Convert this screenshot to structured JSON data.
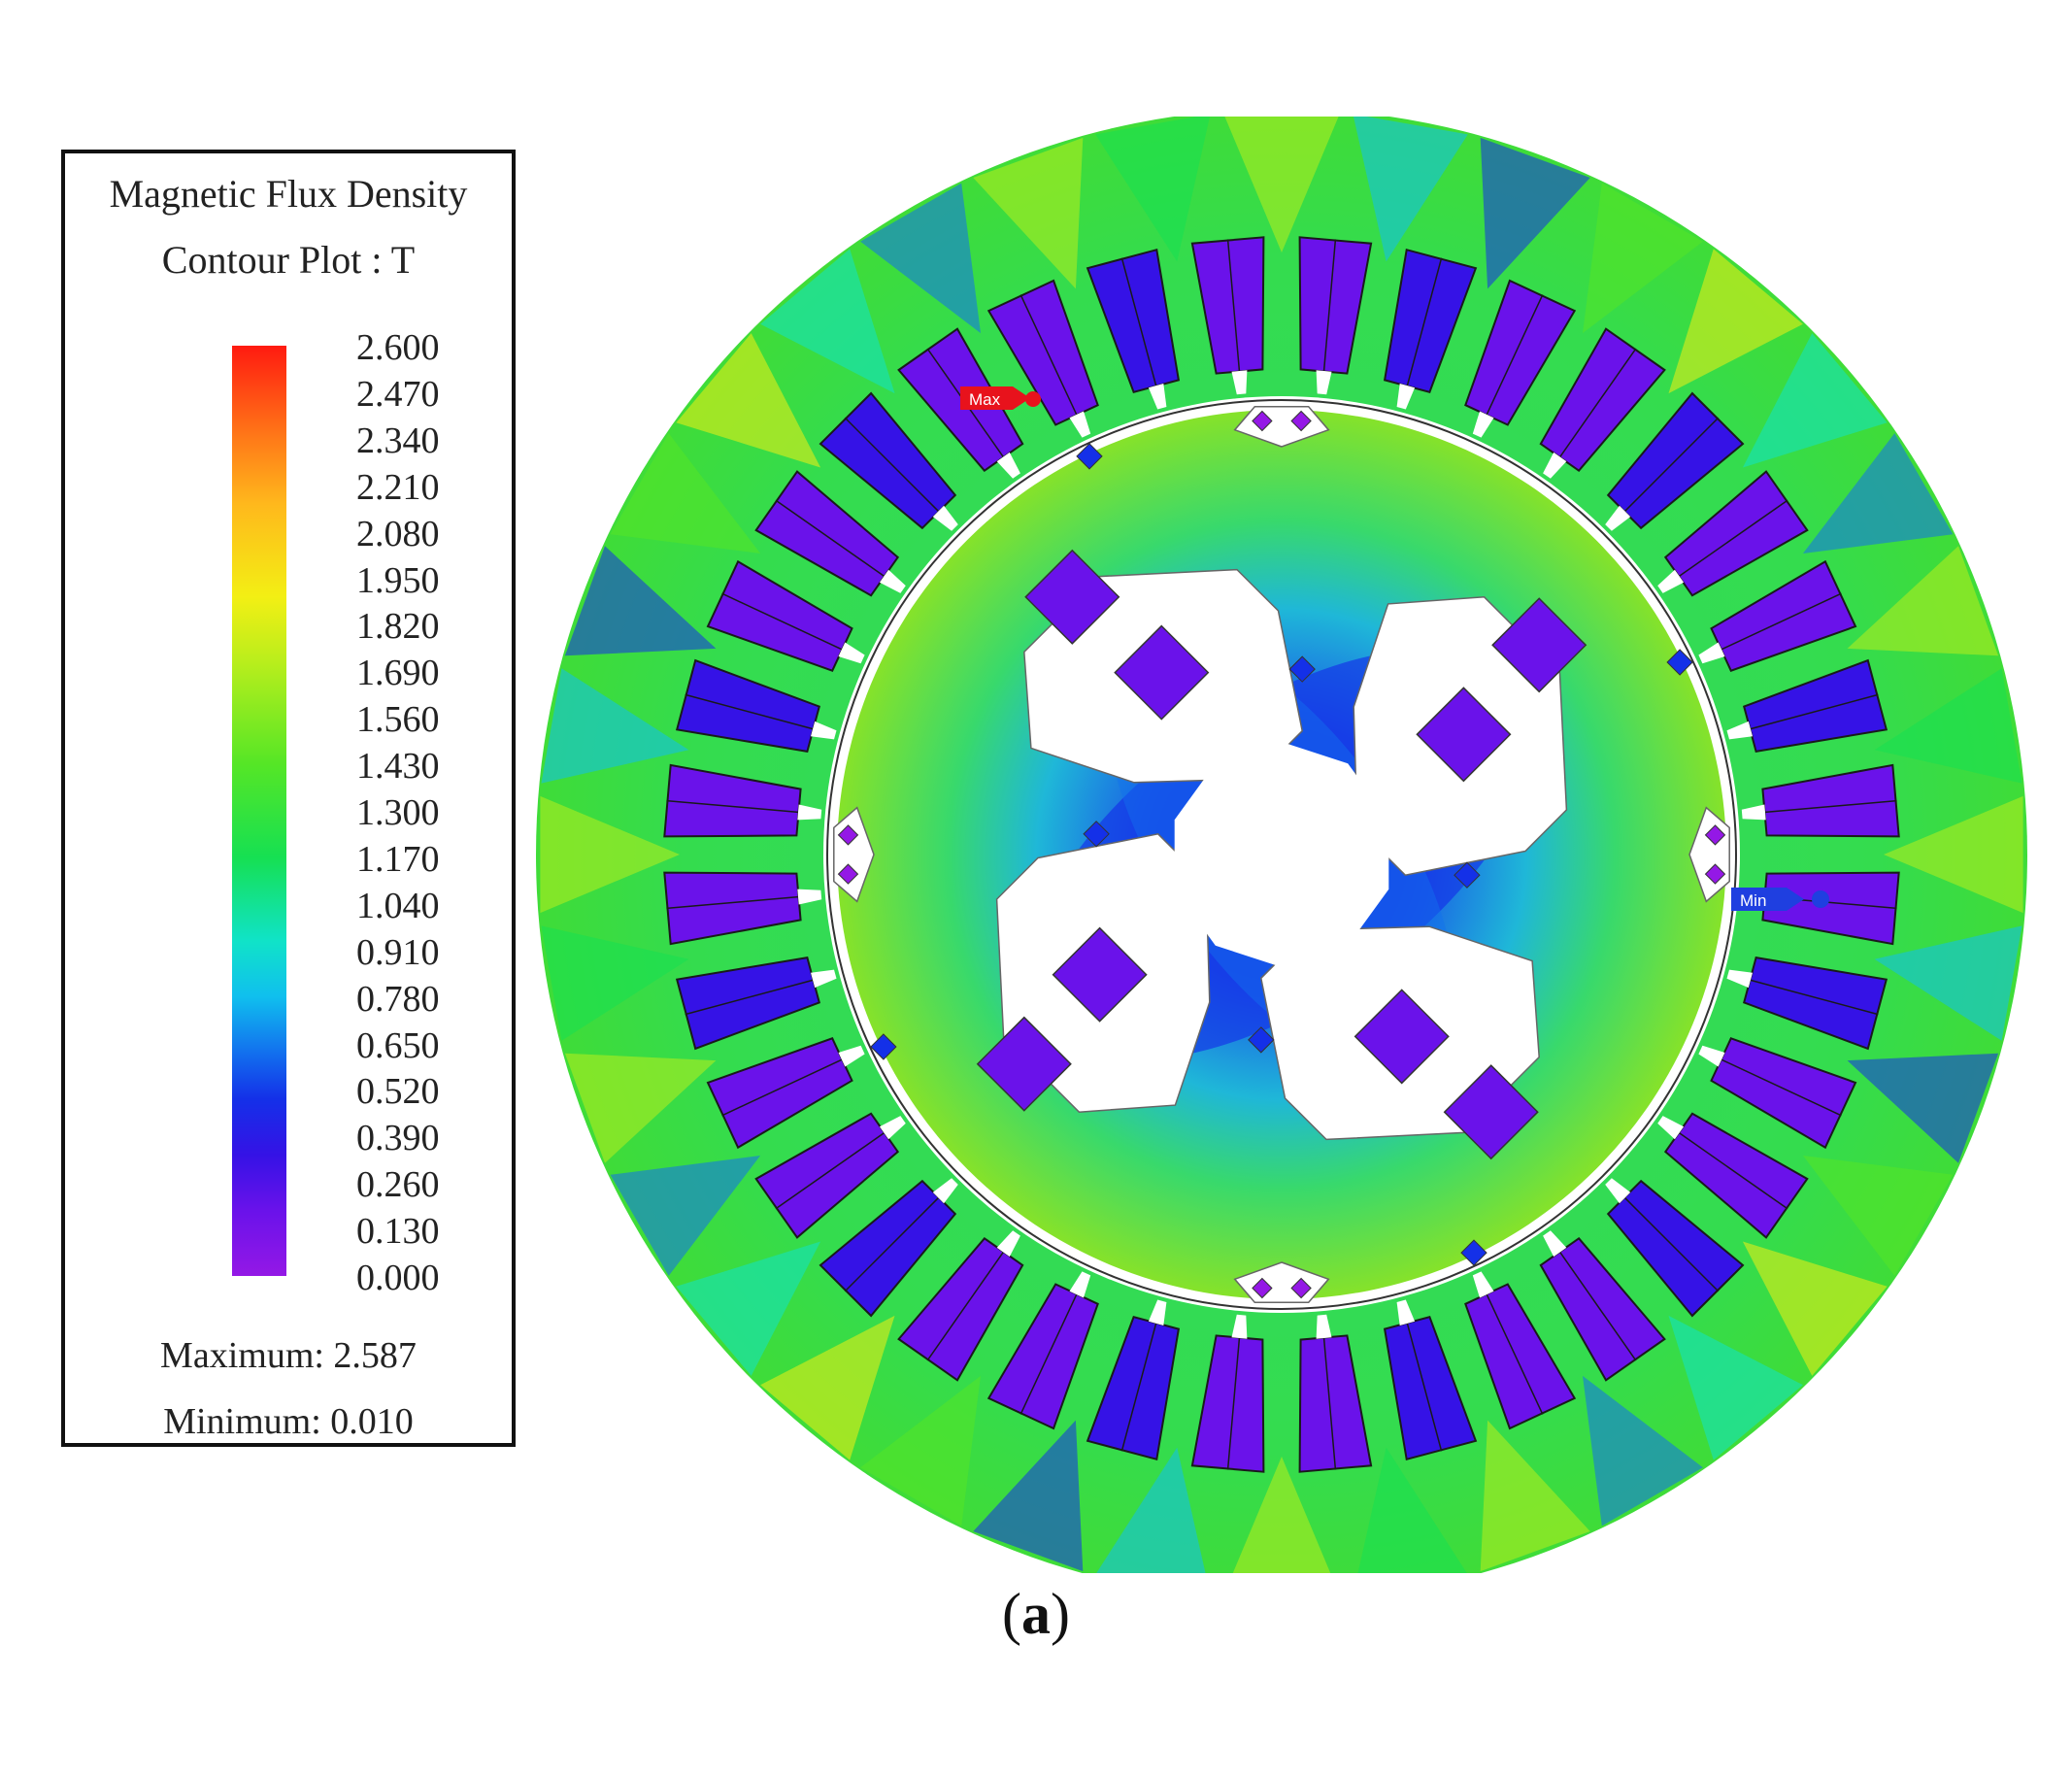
{
  "legend": {
    "title_line1": "Magnetic Flux Density",
    "title_line2": "Contour Plot : T",
    "ticks": [
      "2.600",
      "2.470",
      "2.340",
      "2.210",
      "2.080",
      "1.950",
      "1.820",
      "1.690",
      "1.560",
      "1.430",
      "1.300",
      "1.170",
      "1.040",
      "0.910",
      "0.780",
      "0.650",
      "0.520",
      "0.390",
      "0.260",
      "0.130",
      "0.000"
    ],
    "maximum_text": "Maximum: 2.587",
    "minimum_text": "Minimum: 0.010",
    "colormap": [
      "#9418e6",
      "#6a12ea",
      "#3512e6",
      "#1430e8",
      "#1270ee",
      "#10bfee",
      "#10e3c8",
      "#16e052",
      "#55e626",
      "#b9ee1c",
      "#f3ef14",
      "#ffb81c",
      "#ff7a18",
      "#ff1a10"
    ]
  },
  "markers": {
    "max_label": "Max",
    "min_label": "Min",
    "max_color": "#e8121c",
    "min_color": "#1f3fe0"
  },
  "figure": {
    "label_open": "(",
    "label_letter": "a",
    "label_close": ")"
  },
  "motor": {
    "stator_slots": 36,
    "rotor_poles": 4
  }
}
